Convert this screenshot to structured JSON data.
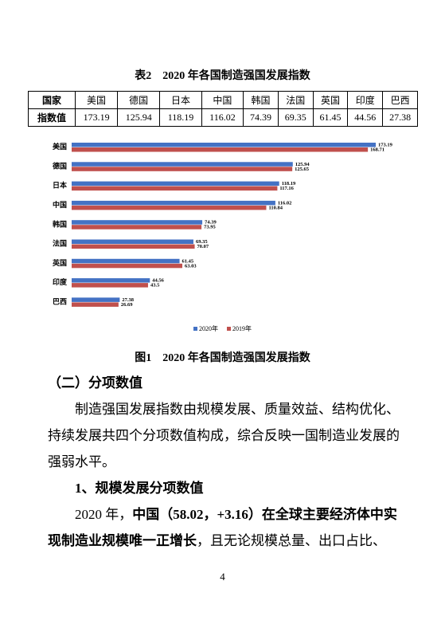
{
  "table": {
    "caption": "表2　2020 年各国制造强国发展指数",
    "header": [
      "国家",
      "美国",
      "德国",
      "日本",
      "中国",
      "韩国",
      "法国",
      "英国",
      "印度",
      "巴西"
    ],
    "row": [
      "指数值",
      "173.19",
      "125.94",
      "118.19",
      "116.02",
      "74.39",
      "69.35",
      "61.45",
      "44.56",
      "27.38"
    ]
  },
  "chart_data": {
    "type": "bar",
    "orientation": "horizontal",
    "categories": [
      "美国",
      "德国",
      "日本",
      "中国",
      "韩国",
      "法国",
      "英国",
      "印度",
      "巴西"
    ],
    "series": [
      {
        "name": "2020年",
        "color": "#4472c4",
        "values": [
          173.19,
          125.94,
          118.19,
          116.02,
          74.39,
          69.35,
          61.45,
          44.56,
          27.38
        ]
      },
      {
        "name": "2019年",
        "color": "#c0504d",
        "values": [
          168.71,
          125.65,
          117.16,
          110.84,
          73.95,
          70.07,
          63.03,
          43.5,
          26.69
        ]
      }
    ],
    "caption": "图1　2020 年各国制造强国发展指数"
  },
  "section": {
    "heading": "（二）分项数值",
    "paragraph": "制造强国发展指数由规模发展、质量效益、结构优化、持续发展共四个分项数值构成，综合反映一国制造业发展的强弱水平。",
    "subheading": "1、规模发展分项数值",
    "paragraph2": {
      "lead": "2020 年，",
      "bold": "中国（58.02，+3.16）在全球主要经济体中实现制造业规模唯一正增长",
      "tail": "，且无论规模总量、出口占比、"
    }
  },
  "page_number": "4"
}
